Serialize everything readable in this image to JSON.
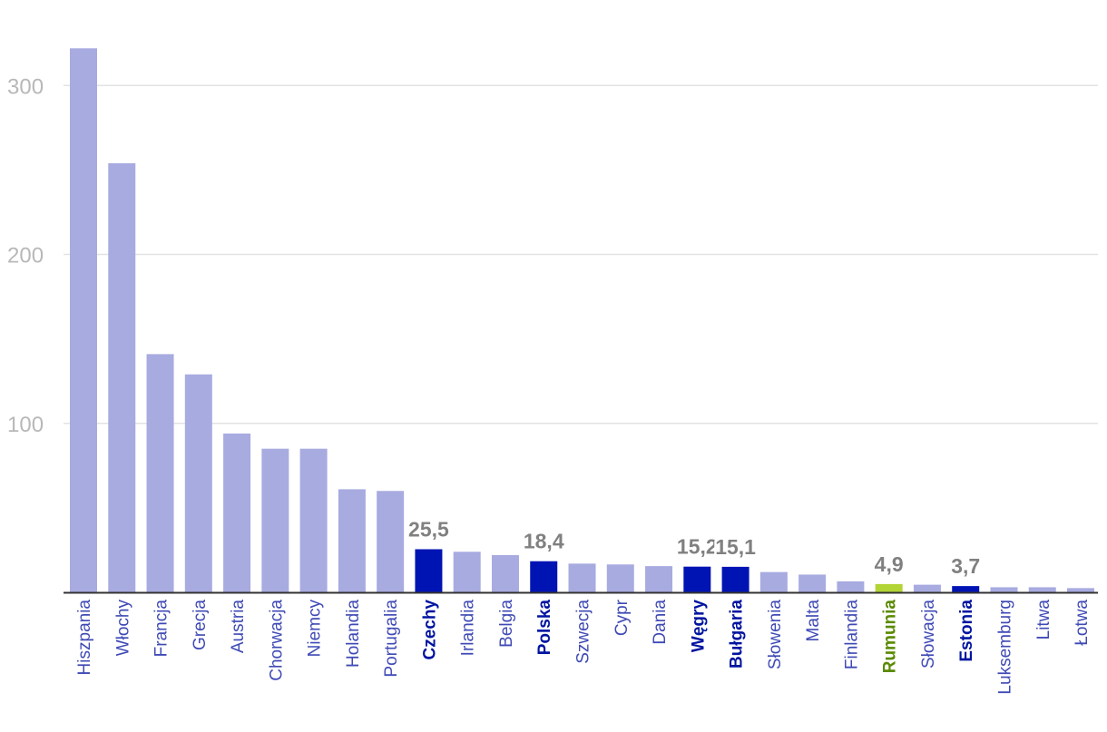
{
  "chart_data": {
    "type": "bar",
    "categories": [
      "Hiszpania",
      "Włochy",
      "Francja",
      "Grecja",
      "Austria",
      "Chorwacja",
      "Niemcy",
      "Holandia",
      "Portugalia",
      "Czechy",
      "Irlandia",
      "Belgia",
      "Polska",
      "Szwecja",
      "Cypr",
      "Dania",
      "Węgry",
      "Bułgaria",
      "Słowenia",
      "Malta",
      "Finlandia",
      "Rumunia",
      "Słowacja",
      "Estonia",
      "Luksemburg",
      "Litwa",
      "Łotwa"
    ],
    "values": [
      322,
      254,
      141,
      129,
      94,
      85,
      85,
      61,
      60,
      25.5,
      24,
      22,
      18.4,
      17,
      16.5,
      15.5,
      15.2,
      15.1,
      12,
      10.5,
      6.5,
      4.9,
      4.5,
      3.7,
      3,
      3,
      2.5
    ],
    "highlight": [
      "normal",
      "normal",
      "normal",
      "normal",
      "normal",
      "normal",
      "normal",
      "normal",
      "normal",
      "dark",
      "normal",
      "normal",
      "dark",
      "normal",
      "normal",
      "normal",
      "dark",
      "dark",
      "normal",
      "normal",
      "normal",
      "green",
      "normal",
      "dark",
      "normal",
      "normal",
      "normal"
    ],
    "value_labels": [
      "",
      "",
      "",
      "",
      "",
      "",
      "",
      "",
      "",
      "25,5",
      "",
      "",
      "18,4",
      "",
      "",
      "",
      "15,2",
      "15,1",
      "",
      "",
      "",
      "4,9",
      "",
      "3,7",
      "",
      "",
      ""
    ],
    "yticks": [
      100,
      200,
      300
    ],
    "ylim": [
      0,
      330
    ],
    "grid": true,
    "colors": {
      "bar": "#a8abe0",
      "bar_dark": "#0014b4",
      "bar_green": "#b3d435",
      "label_normal": "#3f4ab5",
      "label_dark": "#0014a0",
      "label_green": "#5a8a00",
      "value_label": "#808080",
      "tick_label": "#b8b8b8",
      "grid": "#e3e3e3",
      "axis": "#333333"
    }
  }
}
